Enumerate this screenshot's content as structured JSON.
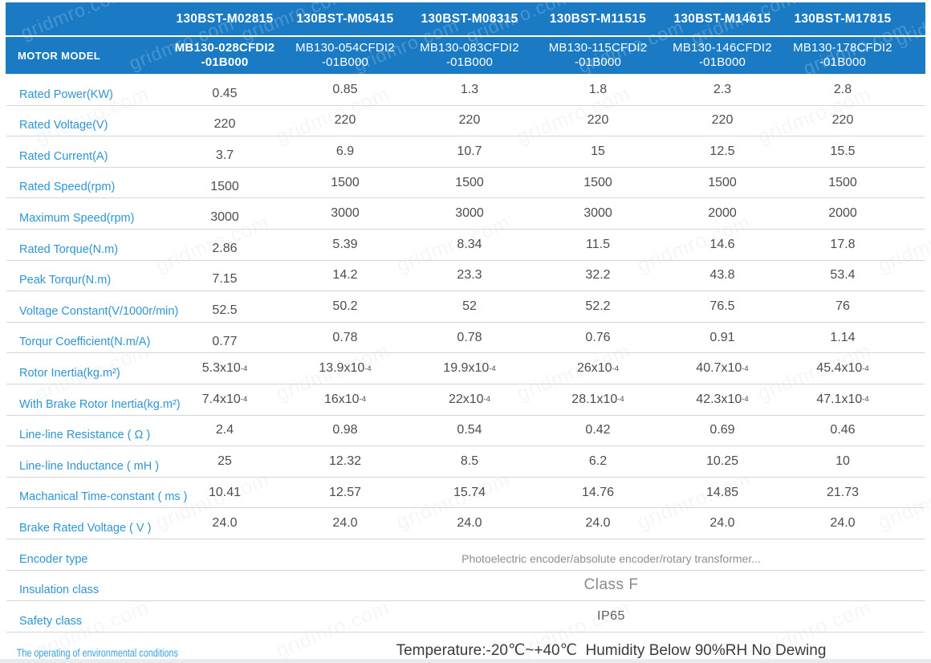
{
  "watermark_text": "gridmro.com",
  "colors": {
    "header_blue": "#1a7ac4",
    "label_blue": "#2e95d3",
    "value_gray": "#4d4d4d",
    "divider_gray": "#d5d5d5"
  },
  "header": {
    "row_label": "MOTOR MODEL",
    "models": [
      "130BST-M02815",
      "130BST-M05415",
      "130BST-M08315",
      "130BST-M11515",
      "130BST-M14615",
      "130BST-M17815"
    ],
    "sub_models": [
      {
        "line1": "MB130-028CFDI2",
        "line2": "-01B000"
      },
      {
        "line1": "MB130-054CFDI2",
        "line2": "-01B000"
      },
      {
        "line1": "MB130-083CFDI2",
        "line2": "-01B000"
      },
      {
        "line1": "MB130-115CFDI2",
        "line2": "-01B000"
      },
      {
        "line1": "MB130-146CFDI2",
        "line2": "-01B000"
      },
      {
        "line1": "MB130-178CFDI2",
        "line2": "-01B000"
      }
    ]
  },
  "specs": [
    {
      "label": "Rated Power(KW)",
      "values": [
        "0.45",
        "0.85",
        "1.3",
        "1.8",
        "2.3",
        "2.8"
      ]
    },
    {
      "label": "Rated Voltage(V)",
      "values": [
        "220",
        "220",
        "220",
        "220",
        "220",
        "220"
      ]
    },
    {
      "label": "Rated Current(A)",
      "values": [
        "3.7",
        "6.9",
        "10.7",
        "15",
        "12.5",
        "15.5"
      ]
    },
    {
      "label": "Rated Speed(rpm)",
      "values": [
        "1500",
        "1500",
        "1500",
        "1500",
        "1500",
        "1500"
      ]
    },
    {
      "label": "Maximum Speed(rpm)",
      "values": [
        "3000",
        "3000",
        "3000",
        "3000",
        "2000",
        "2000"
      ]
    },
    {
      "label": "Rated Torque(N.m)",
      "values": [
        "2.86",
        "5.39",
        "8.34",
        "11.5",
        "14.6",
        "17.8"
      ]
    },
    {
      "label": "Peak Torqur(N.m)",
      "values": [
        "7.15",
        "14.2",
        "23.3",
        "32.2",
        "43.8",
        "53.4"
      ]
    },
    {
      "label": "Voltage Constant(V/1000r/min)",
      "values": [
        "52.5",
        "50.2",
        "52",
        "52.2",
        "76.5",
        "76"
      ]
    },
    {
      "label": "Torqur Coefficient(N.m/A)",
      "values": [
        "0.77",
        "0.78",
        "0.78",
        "0.76",
        "0.91",
        "1.14"
      ]
    },
    {
      "label": "Rotor Inertia(kg.m²)",
      "values": [
        "5.3x10^-4",
        "13.9x10^-4",
        "19.9x10^-4",
        "26x10^-4",
        "40.7x10^-4",
        "45.4x10^-4"
      ]
    },
    {
      "label": "With Brake Rotor Inertia(kg.m²)",
      "values": [
        "7.4x10^-4",
        "16x10^-4",
        "22x10^-4",
        "28.1x10^-4",
        "42.3x10^-4",
        "47.1x10^-4"
      ]
    },
    {
      "label": "Line-line Resistance ( Ω )",
      "values": [
        "2.4",
        "0.98",
        "0.54",
        "0.42",
        "0.69",
        "0.46"
      ]
    },
    {
      "label": "Line-line Inductance ( mH )",
      "values": [
        "25",
        "12.32",
        "8.5",
        "6.2",
        "10.25",
        "10"
      ]
    },
    {
      "label": "Machanical Time-constant ( ms )",
      "values": [
        "10.41",
        "12.57",
        "15.74",
        "14.76",
        "14.85",
        "21.73"
      ]
    },
    {
      "label": "Brake Rated Voltage ( V )",
      "values": [
        "24.0",
        "24.0",
        "24.0",
        "24.0",
        "24.0",
        "24.0"
      ]
    }
  ],
  "merged_specs": [
    {
      "label": "Encoder type",
      "value": "Photoelectric encoder/absolute encoder/rotary transformer..."
    },
    {
      "label": "Insulation class",
      "value": "Class F"
    },
    {
      "label": "Safety class",
      "value": "IP65"
    },
    {
      "label": "The operating of environmental conditions",
      "value": "Temperature:-20℃~+40℃  Humidity Below 90%RH No Dewing"
    }
  ]
}
